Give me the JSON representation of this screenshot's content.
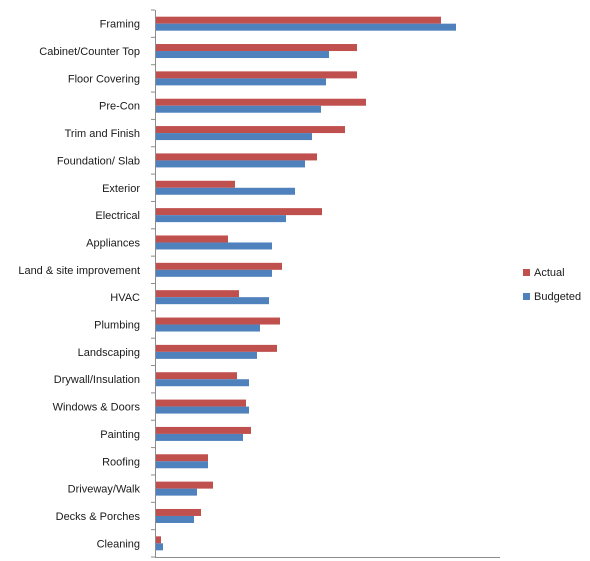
{
  "chart_data": {
    "type": "bar",
    "orientation": "horizontal",
    "title": "",
    "xlabel": "",
    "ylabel": "",
    "categories": [
      "Framing",
      "Cabinet/Counter Top",
      "Floor Covering",
      "Pre-Con",
      "Trim and Finish",
      "Foundation/ Slab",
      "Exterior",
      "Electrical",
      "Appliances",
      "Land & site improvement",
      "HVAC",
      "Plumbing",
      "Landscaping",
      "Drywall/Insulation",
      "Windows & Doors",
      "Painting",
      "Roofing",
      "Driveway/Walk",
      "Decks & Porches",
      "Cleaning"
    ],
    "series": [
      {
        "name": "Actual",
        "color": "#c0504d",
        "values": [
          285,
          201,
          201,
          210,
          189,
          161,
          79,
          166,
          72,
          126,
          83,
          124,
          121,
          81,
          90,
          95,
          52,
          57,
          45,
          5
        ]
      },
      {
        "name": "Budgeted",
        "color": "#4f81bd",
        "values": [
          300,
          173,
          170,
          165,
          156,
          149,
          139,
          130,
          116,
          116,
          113,
          104,
          101,
          93,
          93,
          87,
          52,
          41,
          38,
          7
        ]
      }
    ],
    "xlim": [
      0,
      345
    ],
    "grid": false,
    "legend_position": "right"
  }
}
